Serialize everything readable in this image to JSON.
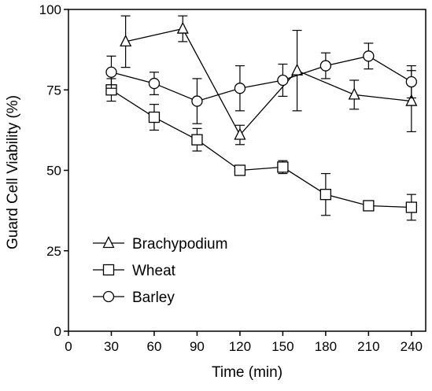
{
  "chart_data": {
    "type": "line",
    "title": "",
    "xlabel": "Time (min)",
    "ylabel": "Guard Cell Viability (%)",
    "xlim": [
      0,
      250
    ],
    "ylim": [
      0,
      100
    ],
    "x_ticks": [
      0,
      30,
      60,
      90,
      120,
      150,
      180,
      210,
      240
    ],
    "y_ticks": [
      0,
      25,
      50,
      75,
      100
    ],
    "legend_position": "bottom-left",
    "grid": false,
    "series": [
      {
        "name": "Brachypodium",
        "marker": "triangle",
        "x": [
          40,
          80,
          120,
          160,
          200,
          240
        ],
        "y": [
          90,
          94,
          61,
          81,
          73.5,
          71.5
        ],
        "err": [
          8,
          4,
          3,
          12.5,
          4.5,
          9.5
        ]
      },
      {
        "name": "Wheat",
        "marker": "square",
        "x": [
          30,
          60,
          90,
          120,
          150,
          180,
          210,
          240
        ],
        "y": [
          75,
          66.5,
          59.5,
          50,
          51,
          42.5,
          39,
          38.5
        ],
        "err": [
          3.5,
          4,
          3.5,
          1,
          2,
          6.5,
          1,
          4
        ]
      },
      {
        "name": "Barley",
        "marker": "circle",
        "x": [
          30,
          60,
          90,
          120,
          150,
          180,
          210,
          240
        ],
        "y": [
          80.5,
          77,
          71.5,
          75.5,
          78,
          82.5,
          85.5,
          77.5
        ],
        "err": [
          5,
          3.5,
          7,
          7,
          5,
          4,
          4,
          5
        ]
      }
    ]
  }
}
